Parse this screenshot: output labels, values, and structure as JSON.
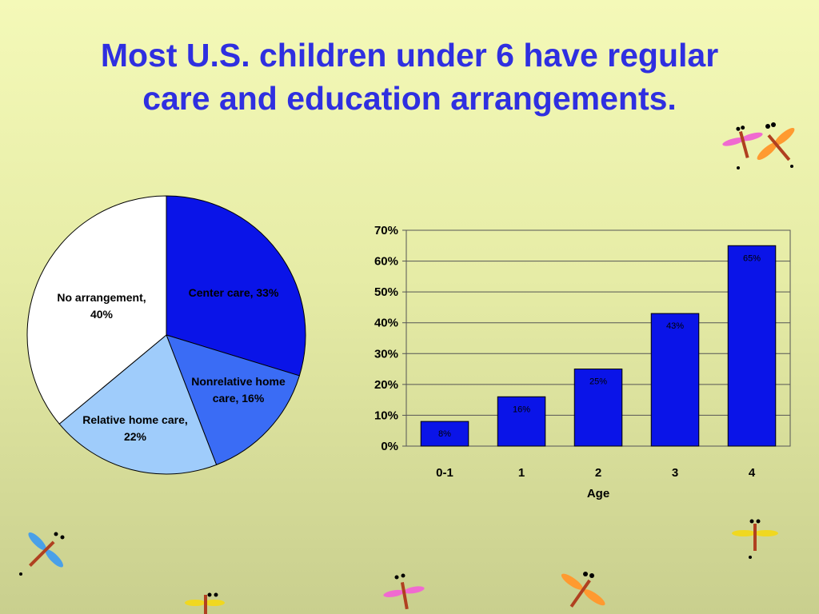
{
  "slide": {
    "title_lines": [
      "Most U.S. children under 6 have regular",
      "care and education arrangements."
    ]
  },
  "colors": {
    "title": "#2f2fe0",
    "bar": "#0a14e8",
    "center_care": "#0a14e8",
    "nonrelative": "#3a6cf5",
    "relative": "#9fccfb",
    "none": "#ffffff"
  },
  "chart_data": [
    {
      "type": "pie",
      "slices": [
        {
          "label": "Center care, 33%",
          "value": 33,
          "color": "#0a14e8"
        },
        {
          "label": "Nonrelative home care, 16%",
          "value": 16,
          "color": "#3a6cf5"
        },
        {
          "label": "Relative home care, 22%",
          "value": 22,
          "color": "#9fccfb"
        },
        {
          "label": "No arrangement, 40%",
          "value": 40,
          "color": "#ffffff"
        }
      ]
    },
    {
      "type": "bar",
      "categories": [
        "0-1",
        "1",
        "2",
        "3",
        "4"
      ],
      "values": [
        8,
        16,
        25,
        43,
        65
      ],
      "value_labels": [
        "8%",
        "16%",
        "25%",
        "43%",
        "65%"
      ],
      "xlabel": "Age",
      "ylabel": "",
      "ylim": [
        0,
        70
      ],
      "yticks": [
        0,
        10,
        20,
        30,
        40,
        50,
        60,
        70
      ],
      "ytick_labels": [
        "0%",
        "10%",
        "20%",
        "30%",
        "40%",
        "50%",
        "60%",
        "70%"
      ],
      "grid": true
    }
  ],
  "decorations": [
    "dragonfly-icon"
  ]
}
